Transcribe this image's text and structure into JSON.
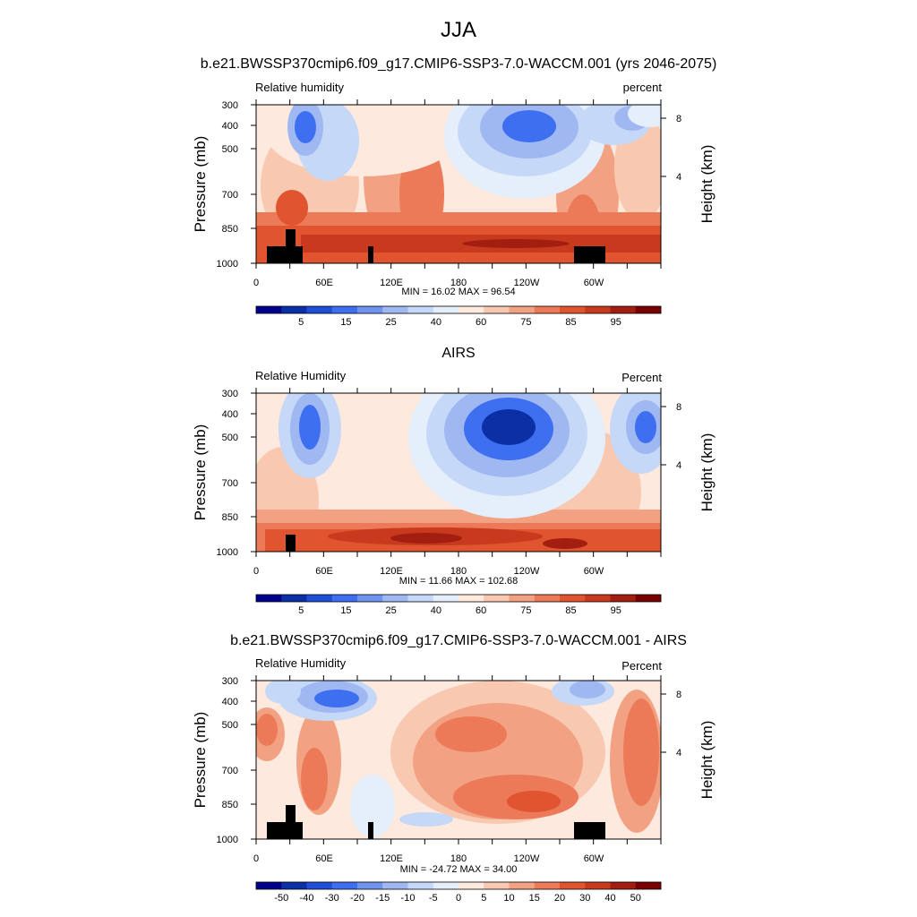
{
  "figure": {
    "title": "JJA"
  },
  "chart_data": [
    {
      "type": "heatmap",
      "title": "b.e21.BWSSP370cmip6.f09_g17.CMIP6-SSP3-7.0-WACCM.001 (yrs 2046-2075)",
      "left_label": "Relative humidity",
      "right_label": "percent",
      "ylabel": "Pressure (mb)",
      "y2label": "Height (km)",
      "x_ticks": [
        "0",
        "60E",
        "120E",
        "180",
        "120W",
        "60W"
      ],
      "y_ticks": [
        "300",
        "400",
        "500",
        "700",
        "850",
        "1000"
      ],
      "y2_ticks": [
        "8",
        "4"
      ],
      "stats": "MIN =  16.02  MAX =  96.54",
      "colorbar_labels": [
        "5",
        "15",
        "25",
        "40",
        "60",
        "75",
        "85",
        "95"
      ],
      "min": 16.02,
      "max": 96.54,
      "colors": [
        "#00008b",
        "#0b30a6",
        "#1f4fd8",
        "#3d6ff0",
        "#6f93ee",
        "#9fb8f2",
        "#c6d8f7",
        "#e5eefb",
        "#fde9dd",
        "#f8c9b0",
        "#f2a283",
        "#ec7a58",
        "#e0542f",
        "#c8391d",
        "#a21e10",
        "#780000"
      ],
      "levels": [
        5,
        10,
        15,
        20,
        25,
        30,
        40,
        50,
        55,
        60,
        70,
        75,
        80,
        85,
        90,
        95
      ]
    },
    {
      "type": "heatmap",
      "title": "AIRS",
      "left_label": "Relative Humidity",
      "right_label": "Percent",
      "ylabel": "Pressure (mb)",
      "y2label": "Height (km)",
      "x_ticks": [
        "0",
        "60E",
        "120E",
        "180",
        "120W",
        "60W"
      ],
      "y_ticks": [
        "300",
        "400",
        "500",
        "700",
        "850",
        "1000"
      ],
      "y2_ticks": [
        "8",
        "4"
      ],
      "stats": "MIN =  11.66  MAX = 102.68",
      "colorbar_labels": [
        "5",
        "15",
        "25",
        "40",
        "60",
        "75",
        "85",
        "95"
      ],
      "min": 11.66,
      "max": 102.68
    },
    {
      "type": "heatmap",
      "title": "b.e21.BWSSP370cmip6.f09_g17.CMIP6-SSP3-7.0-WACCM.001 - AIRS",
      "left_label": "Relative Humidity",
      "right_label": "Percent",
      "ylabel": "Pressure (mb)",
      "y2label": "Height (km)",
      "x_ticks": [
        "0",
        "60E",
        "120E",
        "180",
        "120W",
        "60W"
      ],
      "y_ticks": [
        "300",
        "400",
        "500",
        "700",
        "850",
        "1000"
      ],
      "y2_ticks": [
        "8",
        "4"
      ],
      "stats": "MIN = -24.72  MAX =  34.00",
      "colorbar_labels": [
        "-50",
        "-40",
        "-30",
        "-20",
        "-15",
        "-10",
        "-5",
        "0",
        "5",
        "10",
        "15",
        "20",
        "30",
        "40",
        "50"
      ],
      "min": -24.72,
      "max": 34.0
    }
  ],
  "colors": {
    "scale": [
      "#00008b",
      "#0b30a6",
      "#1f4fd8",
      "#3d6ff0",
      "#6f93ee",
      "#9fb8f2",
      "#c6d8f7",
      "#e5eefb",
      "#fde9dd",
      "#f8c9b0",
      "#f2a283",
      "#ec7a58",
      "#e0542f",
      "#c8391d",
      "#a21e10",
      "#780000"
    ]
  }
}
